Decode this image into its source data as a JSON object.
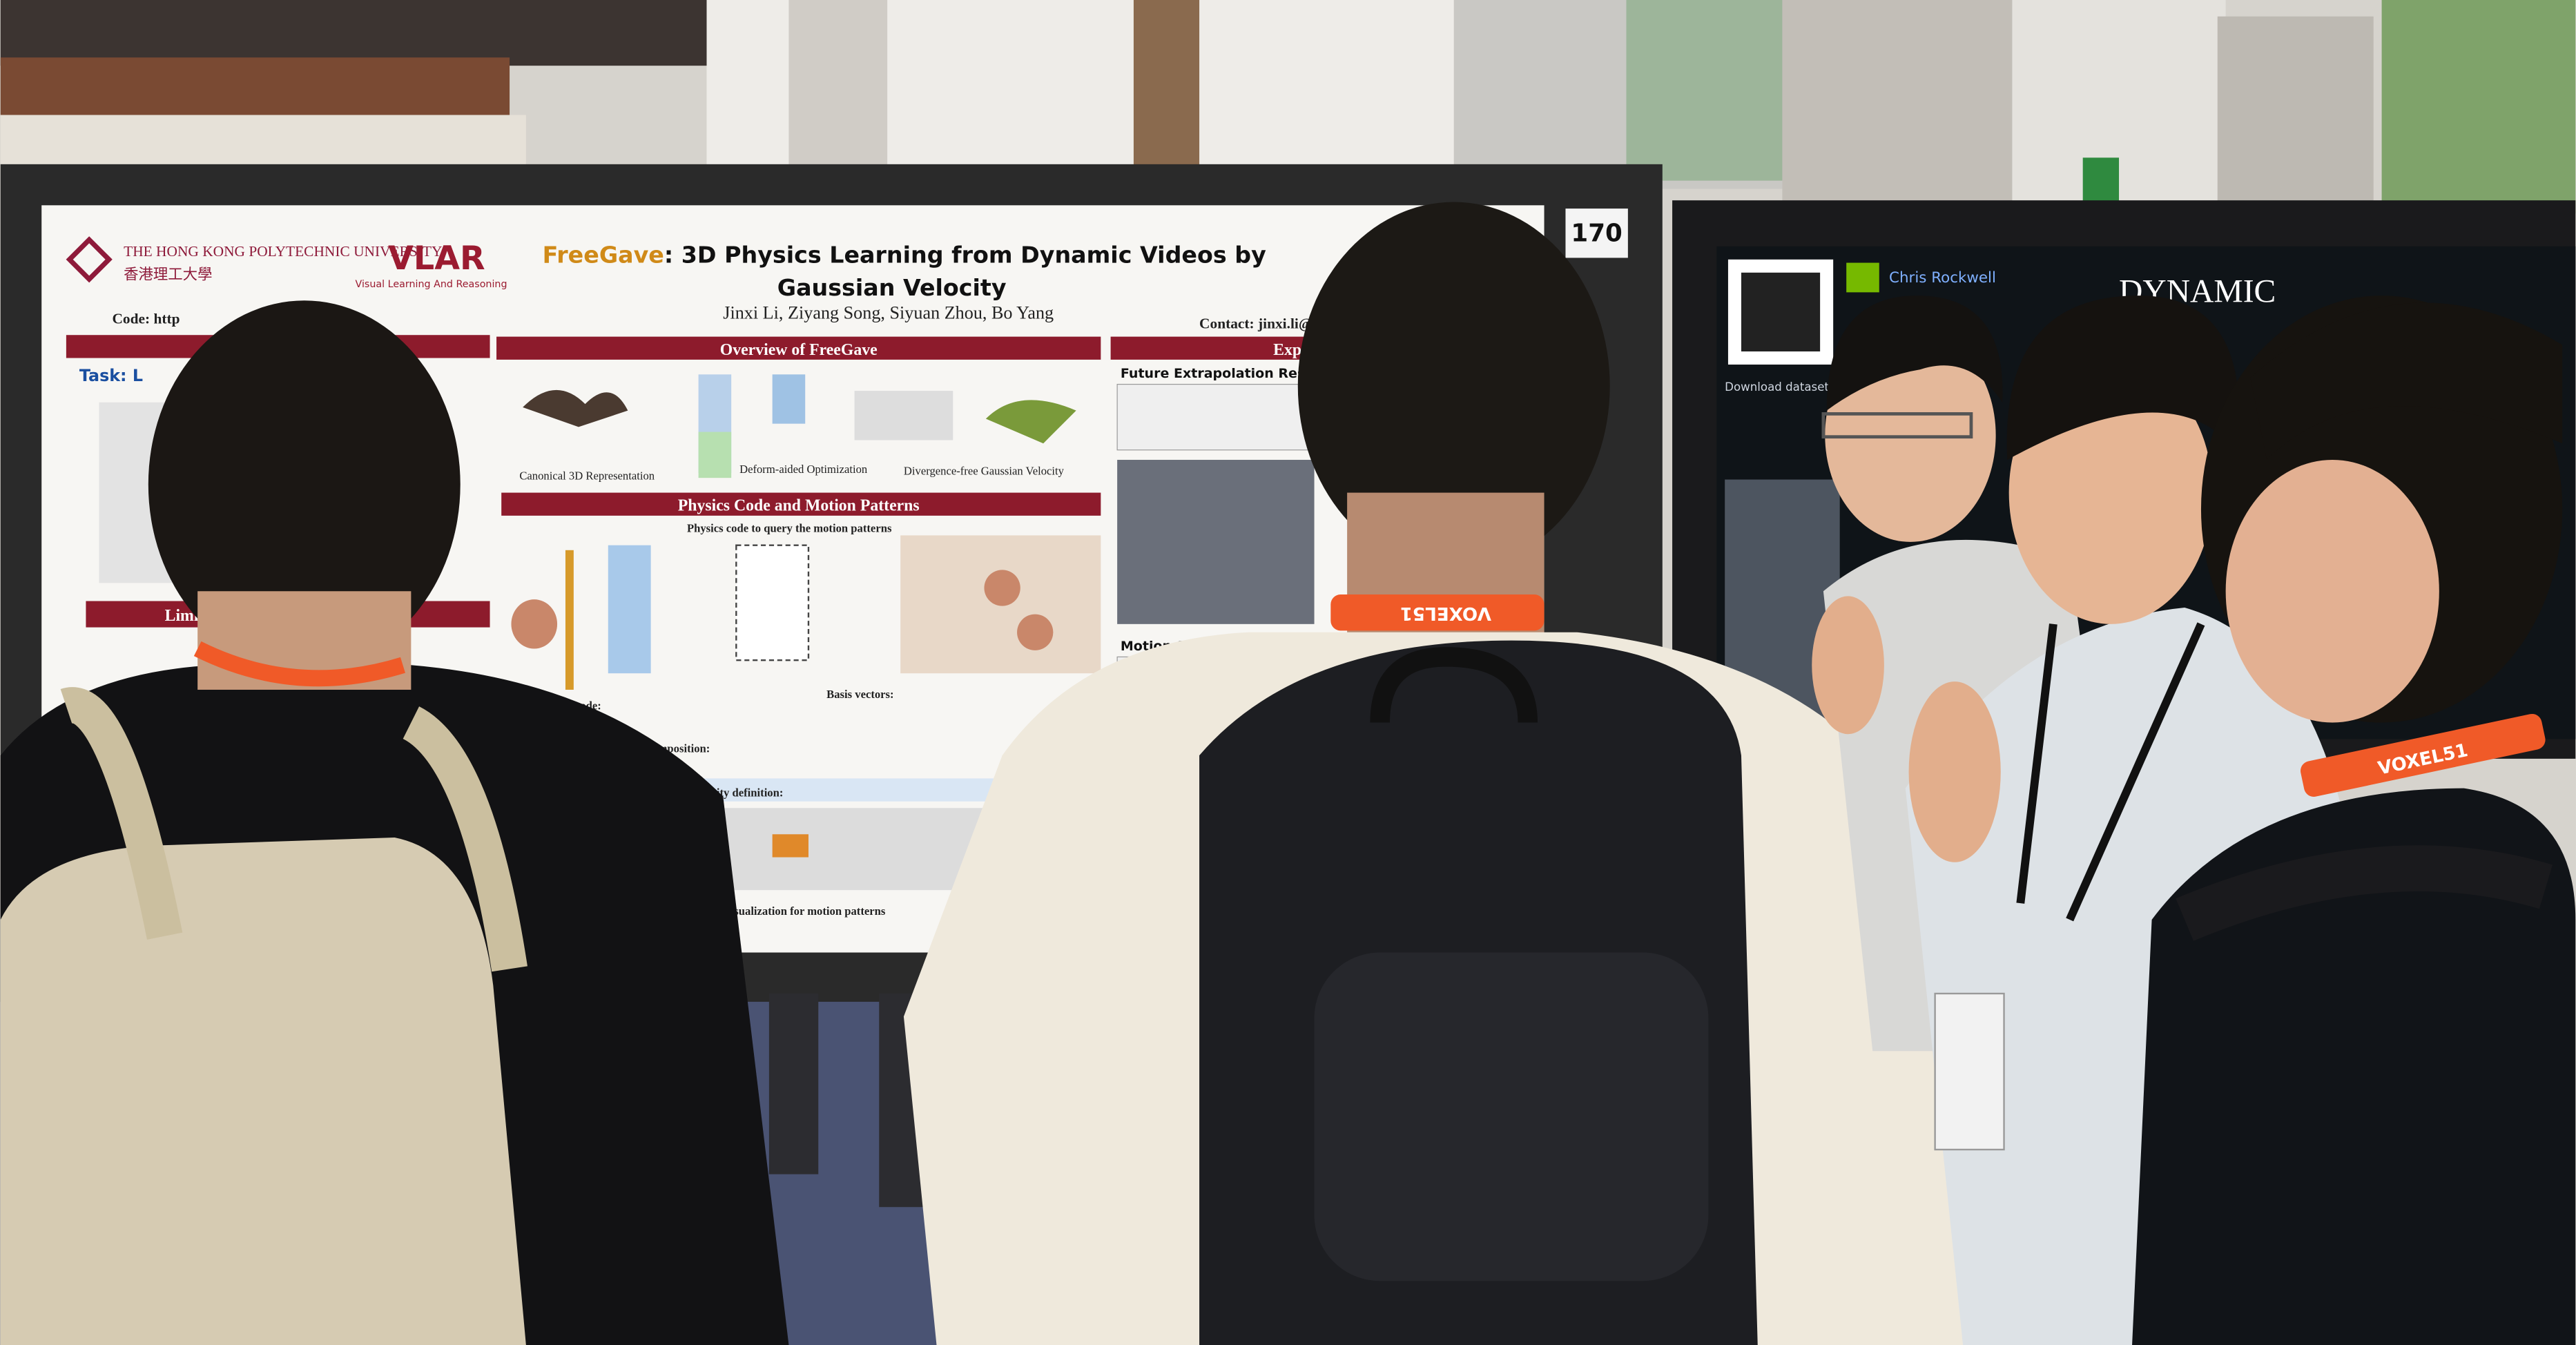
{
  "poster": {
    "university": "THE HONG KONG POLYTECHNIC UNIVERSITY",
    "university_cn": "香港理工大學",
    "lab": "VLAR",
    "lab_full": "Visual Learning And Reasoning",
    "title_part1": "FreeGave",
    "title_part2": ": 3D Physics Learning from Dynamic Videos by",
    "title_part3": "Gaussian Velocity",
    "authors": "Jinxi Li, Ziyang Song, Siyuan Zhou, Bo Yang",
    "code": "Code: http",
    "contact": "Contact: jinxi.li@c",
    "task": "Task: L",
    "limit": "Limit",
    "overview": "Overview of FreeGave",
    "canonical": "Canonical 3D Representation",
    "deform": "Deform-aided Optimization",
    "divergence": "Divergence-free Gaussian Velocity",
    "physics_header": "Physics Code and Motion Patterns",
    "physics_sub": "Physics code to query the motion patterns",
    "physics_code": "Physics code:",
    "patterns": "patterns decomposition:",
    "basis": "Basis vectors:",
    "velocity": "Velocity definition:",
    "visualization": "Visualization for motion patterns",
    "exp": "Expe",
    "future": "Future Extrapolation Results",
    "segmentation": "Motion Segmentation Results"
  },
  "booth_number": "170",
  "right_poster": {
    "title": "DYNAMIC",
    "name": "Chris Rockwell",
    "download": "Download dataset"
  },
  "lanyard_text": "VOXEL51"
}
